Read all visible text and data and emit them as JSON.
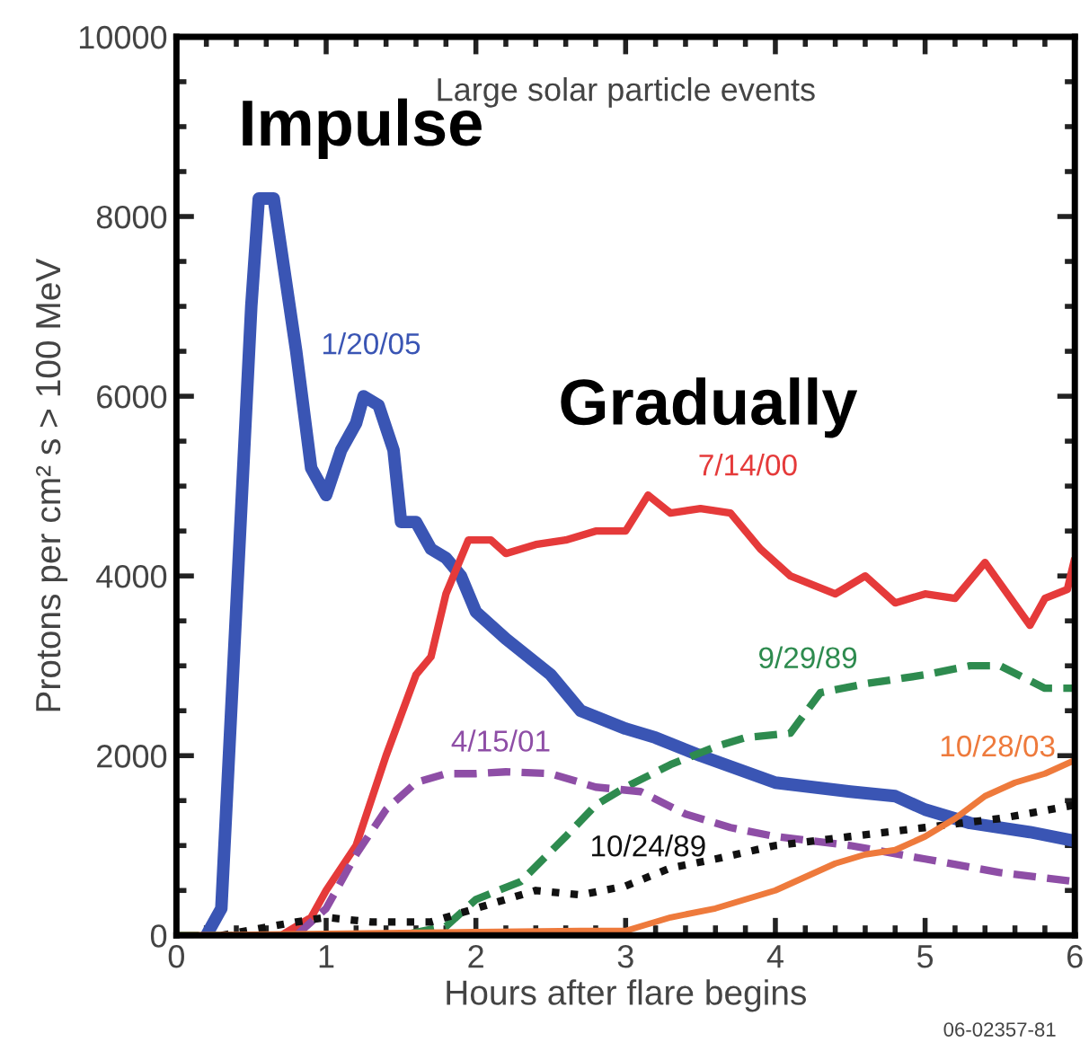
{
  "chart_data": {
    "type": "line",
    "title": "Large solar particle events",
    "xlabel": "Hours after flare begins",
    "ylabel": "Protons per cm² s > 100 MeV",
    "xlim": [
      0,
      6
    ],
    "ylim": [
      0,
      10000
    ],
    "xticks": [
      0,
      1,
      2,
      3,
      4,
      5,
      6
    ],
    "yticks": [
      0,
      2000,
      4000,
      6000,
      8000,
      10000
    ],
    "grid": false,
    "legend": false,
    "annotations": [
      {
        "text": "Impulse",
        "x": 0.6,
        "y": 8200
      },
      {
        "text": "Gradually",
        "x": 3.15,
        "y": 4900
      },
      "06-02357-81"
    ],
    "series": [
      {
        "name": "1/20/05",
        "color": "#3a55b4",
        "line_style": "solid",
        "x": [
          0.2,
          0.3,
          0.5,
          0.55,
          0.65,
          0.8,
          0.9,
          1.0,
          1.1,
          1.2,
          1.25,
          1.35,
          1.45,
          1.5,
          1.6,
          1.7,
          1.8,
          1.9,
          2.0,
          2.2,
          2.5,
          2.7,
          3.0,
          3.2,
          3.5,
          4.0,
          4.5,
          4.8,
          5.0,
          5.3,
          5.7,
          6.0
        ],
        "values": [
          0,
          300,
          7000,
          8200,
          8200,
          6500,
          5200,
          4900,
          5400,
          5700,
          6000,
          5900,
          5400,
          4600,
          4600,
          4300,
          4200,
          4000,
          3600,
          3300,
          2900,
          2500,
          2300,
          2200,
          2000,
          1700,
          1600,
          1550,
          1400,
          1250,
          1150,
          1050
        ]
      },
      {
        "name": "7/14/00",
        "color": "#e53a3a",
        "line_style": "solid",
        "x": [
          0.7,
          0.9,
          1.0,
          1.2,
          1.4,
          1.6,
          1.7,
          1.8,
          1.95,
          2.1,
          2.2,
          2.4,
          2.6,
          2.8,
          3.0,
          3.15,
          3.3,
          3.5,
          3.7,
          3.9,
          4.1,
          4.4,
          4.6,
          4.8,
          5.0,
          5.2,
          5.4,
          5.55,
          5.7,
          5.8,
          5.95,
          6.0
        ],
        "values": [
          0,
          200,
          500,
          1000,
          2000,
          2900,
          3100,
          3800,
          4400,
          4400,
          4250,
          4350,
          4400,
          4500,
          4500,
          4900,
          4700,
          4750,
          4700,
          4300,
          4000,
          3800,
          4000,
          3700,
          3800,
          3750,
          4150,
          3800,
          3450,
          3750,
          3850,
          4200
        ]
      },
      {
        "name": "9/29/89",
        "color": "#2e8b4f",
        "line_style": "dashed",
        "x": [
          0,
          1.5,
          1.8,
          2.0,
          2.3,
          2.6,
          2.8,
          3.0,
          3.3,
          3.6,
          3.8,
          4.1,
          4.3,
          4.6,
          4.8,
          5.0,
          5.3,
          5.5,
          5.8,
          6.0
        ],
        "values": [
          0,
          0,
          100,
          400,
          600,
          1100,
          1450,
          1650,
          1900,
          2100,
          2200,
          2250,
          2700,
          2800,
          2850,
          2900,
          3000,
          3000,
          2750,
          2750
        ]
      },
      {
        "name": "4/15/01",
        "color": "#8e4ea6",
        "line_style": "dashed",
        "x": [
          0.8,
          1.0,
          1.2,
          1.4,
          1.6,
          1.8,
          2.0,
          2.2,
          2.5,
          2.8,
          3.1,
          3.4,
          3.7,
          4.0,
          4.5,
          5.0,
          5.5,
          6.0
        ],
        "values": [
          0,
          300,
          900,
          1400,
          1700,
          1800,
          1800,
          1820,
          1800,
          1650,
          1600,
          1350,
          1200,
          1100,
          1000,
          850,
          700,
          600
        ]
      },
      {
        "name": "10/24/89",
        "color": "#111111",
        "line_style": "dotted",
        "x": [
          0.3,
          0.8,
          1.0,
          1.3,
          1.7,
          2.0,
          2.4,
          2.7,
          3.0,
          3.3,
          3.6,
          4.0,
          4.5,
          5.0,
          5.5,
          6.0
        ],
        "values": [
          0,
          150,
          200,
          150,
          150,
          300,
          500,
          450,
          550,
          750,
          850,
          1000,
          1100,
          1200,
          1300,
          1450
        ]
      },
      {
        "name": "10/28/03",
        "color": "#ee7a3c",
        "line_style": "solid",
        "x": [
          0,
          2.7,
          3.0,
          3.3,
          3.6,
          4.0,
          4.2,
          4.4,
          4.6,
          4.8,
          5.0,
          5.2,
          5.4,
          5.6,
          5.8,
          6.0
        ],
        "values": [
          0,
          50,
          50,
          200,
          300,
          500,
          650,
          800,
          900,
          950,
          1100,
          1300,
          1550,
          1700,
          1800,
          1950
        ]
      }
    ]
  }
}
